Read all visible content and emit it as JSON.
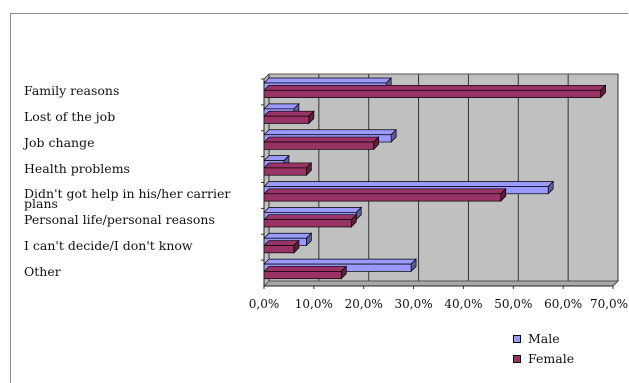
{
  "chart_data": {
    "type": "bar",
    "orientation": "horizontal",
    "categories": [
      "Family reasons",
      "Lost of the job",
      "Job change",
      "Health problems",
      "Didn't got help in his/her carrier plans",
      "Personal life/personal reasons",
      "I can't decide/I don't know",
      "Other"
    ],
    "category_lines": [
      [
        "Family reasons"
      ],
      [
        "Lost of the job"
      ],
      [
        "Job change"
      ],
      [
        "Health problems"
      ],
      [
        "Didn't got help in his/her carrier",
        "plans"
      ],
      [
        "Personal life/personal reasons"
      ],
      [
        "I can't decide/I don't know"
      ],
      [
        "Other"
      ]
    ],
    "series": [
      {
        "name": "Male",
        "values": [
          24.5,
          6.0,
          25.5,
          4.0,
          57.0,
          18.5,
          8.5,
          29.5
        ],
        "color": "#9999ff"
      },
      {
        "name": "Female",
        "values": [
          67.5,
          9.0,
          22.0,
          8.5,
          47.5,
          17.5,
          6.0,
          15.5
        ],
        "color": "#993366"
      }
    ],
    "xlim": [
      0,
      70
    ],
    "ticks": [
      0,
      10,
      20,
      30,
      40,
      50,
      60,
      70
    ],
    "tick_labels": [
      "0,0%",
      "10,0%",
      "20,0%",
      "30,0%",
      "40,0%",
      "50,0%",
      "60,0%",
      "70,0%"
    ],
    "plot_background": "#c0c0c0",
    "grid": true,
    "legend": "bottom-right",
    "title": "",
    "xlabel": "",
    "ylabel": ""
  }
}
